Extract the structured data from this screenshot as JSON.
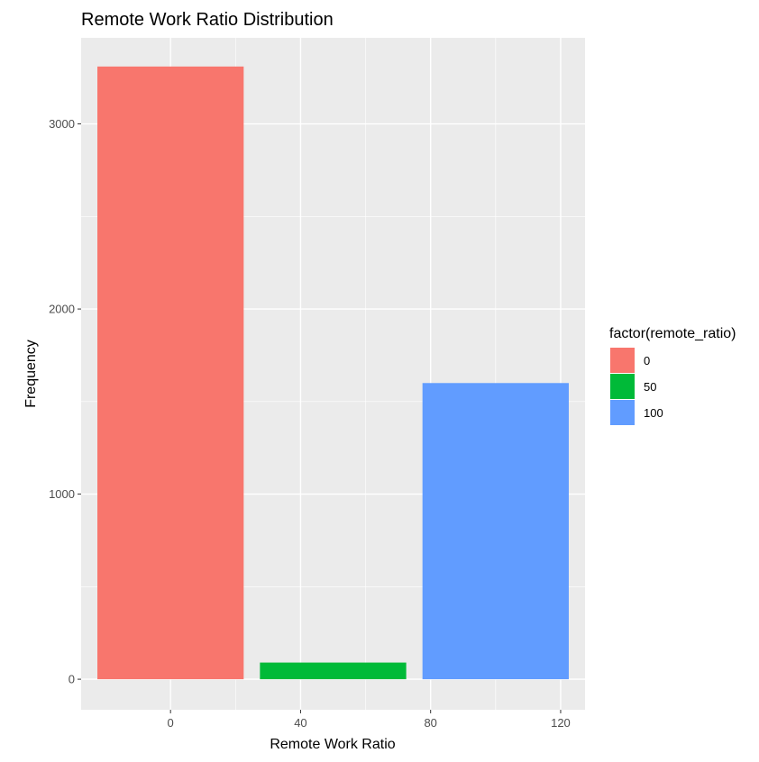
{
  "chart_data": {
    "type": "bar",
    "title": "Remote Work Ratio Distribution",
    "xlabel": "Remote Work Ratio",
    "ylabel": "Frequency",
    "xlim": [
      -27.5,
      127.5
    ],
    "ylim": [
      -165,
      3465
    ],
    "x_ticks": [
      0,
      40,
      80,
      120
    ],
    "y_ticks": [
      0,
      1000,
      2000,
      3000
    ],
    "bar_width": 45,
    "categories": [
      "0",
      "50",
      "100"
    ],
    "x": [
      0,
      50,
      100
    ],
    "values": [
      3310,
      90,
      1600
    ],
    "legend": {
      "title": "factor(remote_ratio)",
      "position": "right",
      "entries": [
        "0",
        "50",
        "100"
      ]
    },
    "colors": [
      "#F8766D",
      "#00BA38",
      "#619CFF"
    ],
    "panel_background": "#EBEBEB",
    "grid": true
  }
}
